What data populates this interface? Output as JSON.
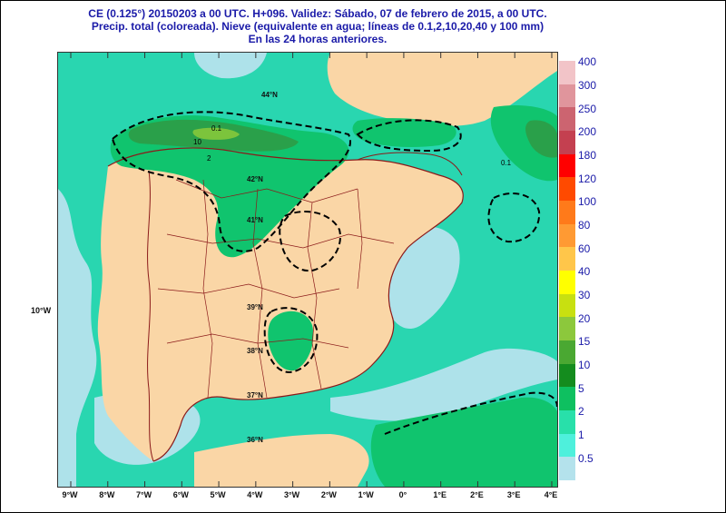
{
  "title": {
    "line1": "CE (0.125°) 20150203 a 00 UTC.  H+096. Validez: Sábado, 07 de febrero de 2015,  a  00 UTC.",
    "line2": "Precip. total (coloreada). Nieve (equivalente en agua; líneas de 0.1,2,10,20,40 y 100 mm)",
    "line3": "En las 24 horas anteriores."
  },
  "x_ticks": [
    "9°W",
    "8°W",
    "7°W",
    "6°W",
    "5°W",
    "4°W",
    "3°W",
    "2°W",
    "1°W",
    "0°",
    "1°E",
    "2°E",
    "3°E",
    "4°E"
  ],
  "y_label": "10°W",
  "lat_labels": [
    "44°N",
    "42°N",
    "41°N",
    "39°N",
    "38°N",
    "37°N",
    "36°N"
  ],
  "isoline_labels": [
    "0.1",
    "10",
    "2",
    "0.1"
  ],
  "legend": {
    "labels": [
      "400",
      "300",
      "250",
      "200",
      "180",
      "120",
      "100",
      "80",
      "60",
      "40",
      "30",
      "20",
      "15",
      "10",
      "5",
      "2",
      "1",
      "0.5"
    ],
    "colors": [
      "#f2c4c8",
      "#e0959c",
      "#cc6470",
      "#c44050",
      "#ff0000",
      "#ff4a00",
      "#ff7a1a",
      "#ff9a33",
      "#ffc64a",
      "#ffff00",
      "#c8e010",
      "#8cc83c",
      "#4aa832",
      "#148c1e",
      "#0ec060",
      "#28e0aa",
      "#4ef0dc",
      "#b4e2ec"
    ]
  },
  "map_colors": {
    "land_dry": "#fad6a6",
    "trace": "#aee2ea",
    "light": "#32e4b0",
    "medium": "#10c46e",
    "heavy": "#2aa04a",
    "very_heavy": "#7cc43c"
  }
}
